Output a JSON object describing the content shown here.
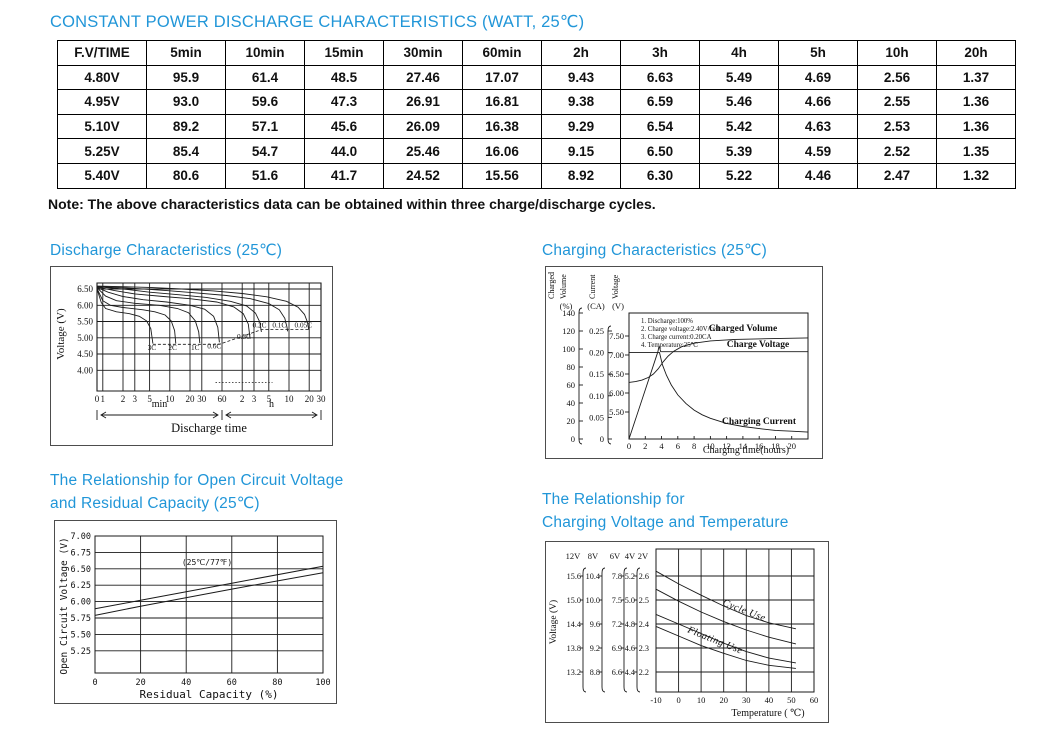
{
  "title": "CONSTANT POWER DISCHARGE CHARACTERISTICS (WATT, 25℃)",
  "note": "Note: The above characteristics data can be obtained within three charge/discharge cycles.",
  "colors": {
    "accent": "#2196d8",
    "ink": "#111111"
  },
  "table": {
    "headers": [
      "F.V/TIME",
      "5min",
      "10min",
      "15min",
      "30min",
      "60min",
      "2h",
      "3h",
      "4h",
      "5h",
      "10h",
      "20h"
    ],
    "rows": [
      {
        "label": "4.80V",
        "values": [
          "95.9",
          "61.4",
          "48.5",
          "27.46",
          "17.07",
          "9.43",
          "6.63",
          "5.49",
          "4.69",
          "2.56",
          "1.37"
        ]
      },
      {
        "label": "4.95V",
        "values": [
          "93.0",
          "59.6",
          "47.3",
          "26.91",
          "16.81",
          "9.38",
          "6.59",
          "5.46",
          "4.66",
          "2.55",
          "1.36"
        ]
      },
      {
        "label": "5.10V",
        "values": [
          "89.2",
          "57.1",
          "45.6",
          "26.09",
          "16.38",
          "9.29",
          "6.54",
          "5.42",
          "4.63",
          "2.53",
          "1.36"
        ]
      },
      {
        "label": "5.25V",
        "values": [
          "85.4",
          "54.7",
          "44.0",
          "25.46",
          "16.06",
          "9.15",
          "6.50",
          "5.39",
          "4.59",
          "2.52",
          "1.35"
        ]
      },
      {
        "label": "5.40V",
        "values": [
          "80.6",
          "51.6",
          "41.7",
          "24.52",
          "15.56",
          "8.92",
          "6.30",
          "5.22",
          "4.46",
          "2.47",
          "1.32"
        ]
      }
    ]
  },
  "chart_data": [
    {
      "id": "discharge",
      "type": "line",
      "heading": "Discharge Characteristics (25℃)",
      "ylabel": "Voltage (V)",
      "xlabel": "Discharge time",
      "x_segment_labels": [
        "min",
        "h"
      ],
      "y_ticks": [
        "6.50",
        "6.00",
        "5.50",
        "5.00",
        "4.50",
        "4.00"
      ],
      "x_ticks": [
        {
          "label": "0",
          "t": 0.82
        },
        {
          "label": "1",
          "t": 1
        },
        {
          "label": "2",
          "t": 2
        },
        {
          "label": "3",
          "t": 3
        },
        {
          "label": "5",
          "t": 5
        },
        {
          "label": "10",
          "t": 10
        },
        {
          "label": "20",
          "t": 20
        },
        {
          "label": "30",
          "t": 30
        },
        {
          "label": "60",
          "t": 60
        },
        {
          "label": "2",
          "t": 120
        },
        {
          "label": "3",
          "t": 180
        },
        {
          "label": "5",
          "t": 300
        },
        {
          "label": "10",
          "t": 600
        },
        {
          "label": "20",
          "t": 1200
        },
        {
          "label": "30",
          "t": 1800
        }
      ],
      "series": [
        {
          "name": "3C",
          "label_at": [
            5.4,
            4.62
          ],
          "points": [
            [
              0.82,
              6.5
            ],
            [
              0.95,
              6.08
            ],
            [
              1.1,
              5.9
            ],
            [
              1.6,
              5.8
            ],
            [
              2.5,
              5.74
            ],
            [
              3.5,
              5.66
            ],
            [
              4.5,
              5.52
            ],
            [
              5.2,
              5.28
            ],
            [
              5.6,
              4.82
            ]
          ]
        },
        {
          "name": "2C",
          "label_at": [
            11,
            4.62
          ],
          "points": [
            [
              0.82,
              6.52
            ],
            [
              1.0,
              6.14
            ],
            [
              1.3,
              6.0
            ],
            [
              2,
              5.93
            ],
            [
              4,
              5.86
            ],
            [
              6,
              5.8
            ],
            [
              8.5,
              5.7
            ],
            [
              10.5,
              5.52
            ],
            [
              11.8,
              5.22
            ],
            [
              12.3,
              4.82
            ]
          ]
        },
        {
          "name": "1C",
          "label_at": [
            24,
            4.62
          ],
          "points": [
            [
              0.82,
              6.54
            ],
            [
              1.1,
              6.28
            ],
            [
              1.6,
              6.14
            ],
            [
              3,
              6.06
            ],
            [
              7,
              6.0
            ],
            [
              13,
              5.9
            ],
            [
              19,
              5.77
            ],
            [
              24,
              5.52
            ],
            [
              27,
              5.18
            ],
            [
              28,
              4.84
            ]
          ]
        },
        {
          "name": "0.6C",
          "label_at": [
            46,
            4.67
          ],
          "points": [
            [
              0.82,
              6.55
            ],
            [
              1.2,
              6.4
            ],
            [
              2,
              6.27
            ],
            [
              4,
              6.17
            ],
            [
              9,
              6.1
            ],
            [
              20,
              6.0
            ],
            [
              33,
              5.88
            ],
            [
              45,
              5.66
            ],
            [
              52,
              5.32
            ],
            [
              55,
              4.86
            ]
          ]
        },
        {
          "name": "0.3C",
          "label_at": [
            128,
            4.96
          ],
          "points": [
            [
              0.82,
              6.56
            ],
            [
              1.5,
              6.45
            ],
            [
              3,
              6.35
            ],
            [
              8,
              6.27
            ],
            [
              20,
              6.2
            ],
            [
              50,
              6.1
            ],
            [
              90,
              5.95
            ],
            [
              125,
              5.74
            ],
            [
              148,
              5.42
            ],
            [
              157,
              5.0
            ]
          ]
        },
        {
          "name": "0.2C",
          "label_at": [
            218,
            5.32
          ],
          "points": [
            [
              0.82,
              6.57
            ],
            [
              2,
              6.5
            ],
            [
              5,
              6.4
            ],
            [
              14,
              6.32
            ],
            [
              35,
              6.24
            ],
            [
              80,
              6.12
            ],
            [
              140,
              5.98
            ],
            [
              190,
              5.76
            ],
            [
              220,
              5.48
            ],
            [
              232,
              5.18
            ]
          ]
        },
        {
          "name": "0.1C",
          "label_at": [
            430,
            5.32
          ],
          "points": [
            [
              0.82,
              6.58
            ],
            [
              3,
              6.52
            ],
            [
              9,
              6.45
            ],
            [
              25,
              6.38
            ],
            [
              70,
              6.3
            ],
            [
              160,
              6.2
            ],
            [
              300,
              6.05
            ],
            [
              430,
              5.86
            ],
            [
              520,
              5.6
            ],
            [
              560,
              5.32
            ],
            [
              572,
              5.2
            ]
          ]
        },
        {
          "name": "0.05C",
          "label_at": [
            980,
            5.32
          ],
          "points": [
            [
              0.82,
              6.59
            ],
            [
              5,
              6.55
            ],
            [
              15,
              6.5
            ],
            [
              45,
              6.44
            ],
            [
              120,
              6.36
            ],
            [
              280,
              6.26
            ],
            [
              550,
              6.12
            ],
            [
              820,
              5.94
            ],
            [
              1020,
              5.72
            ],
            [
              1130,
              5.48
            ],
            [
              1180,
              5.25
            ]
          ]
        }
      ],
      "cutoff_dashed": [
        [
          5.6,
          4.8
        ],
        [
          55,
          4.8
        ],
        [
          232,
          5.25
        ],
        [
          1180,
          5.25
        ]
      ],
      "bottom_dotted": [
        [
          48,
          3.62
        ],
        [
          340,
          3.62
        ]
      ]
    },
    {
      "id": "charging",
      "type": "line",
      "heading": "Charging Characteristics (25℃)",
      "xlabel": "Charging time(hours)",
      "x_ticks": [
        "0",
        "2",
        "4",
        "6",
        "8",
        "10",
        "12",
        "14",
        "16",
        "18",
        "20"
      ],
      "axes": [
        {
          "title": [
            "Charged",
            "Volume"
          ],
          "unit": "(%)",
          "ticks": [
            "140",
            "120",
            "100",
            "80",
            "60",
            "40",
            "20",
            "0"
          ]
        },
        {
          "title": [
            "Current"
          ],
          "unit": "(CA)",
          "ticks": [
            "0.25",
            "0.20",
            "0.15",
            "0.10",
            "0.05",
            "0"
          ]
        },
        {
          "title": [
            "Voltage"
          ],
          "unit": "(V)",
          "ticks": [
            "7.50",
            "7.00",
            "6.50",
            "6.00",
            "5.50"
          ]
        }
      ],
      "notes": [
        "1. Discharge:100%",
        "2. Charge voltage:2.40V/cell",
        "3. Charge current:0.20CA",
        "4. Temperature:25℃"
      ],
      "curve_labels": [
        {
          "text": "Charged Volume",
          "x": 197,
          "y": 64
        },
        {
          "text": "Charge Voltage",
          "x": 212,
          "y": 80
        },
        {
          "text": "Charging Current",
          "x": 213,
          "y": 157
        }
      ],
      "series": [
        {
          "name": "charge-voltage",
          "scale": "pct",
          "points": [
            [
              0,
              0
            ],
            [
              3.55,
              97
            ],
            [
              3.7,
              103.5
            ],
            [
              3.9,
              97
            ],
            [
              22,
              97
            ]
          ]
        },
        {
          "name": "charged-volume",
          "scale": "v",
          "points": [
            [
              0,
              6.28
            ],
            [
              0.8,
              6.3
            ],
            [
              1.6,
              6.34
            ],
            [
              2.4,
              6.41
            ],
            [
              3.0,
              6.5
            ],
            [
              3.6,
              6.64
            ],
            [
              4.2,
              6.82
            ],
            [
              4.8,
              6.97
            ],
            [
              5.5,
              7.1
            ],
            [
              6.5,
              7.22
            ],
            [
              8,
              7.31
            ],
            [
              10,
              7.37
            ],
            [
              13,
              7.41
            ],
            [
              17,
              7.43
            ],
            [
              22,
              7.45
            ]
          ]
        },
        {
          "name": "charging-current",
          "scale": "ca",
          "points": [
            [
              0,
              0.2
            ],
            [
              3.6,
              0.2
            ],
            [
              3.75,
              0.2
            ],
            [
              4.1,
              0.172
            ],
            [
              4.6,
              0.148
            ],
            [
              5.2,
              0.125
            ],
            [
              6,
              0.102
            ],
            [
              7,
              0.082
            ],
            [
              8,
              0.067
            ],
            [
              9,
              0.056
            ],
            [
              10,
              0.048
            ],
            [
              12,
              0.036
            ],
            [
              14,
              0.029
            ],
            [
              16,
              0.024
            ],
            [
              18,
              0.02
            ],
            [
              20,
              0.018
            ],
            [
              22,
              0.016
            ]
          ]
        }
      ]
    },
    {
      "id": "ocv",
      "type": "line",
      "heading_lines": [
        "The Relationship for Open Circuit Voltage",
        "and Residual Capacity (25℃)"
      ],
      "ylabel": "Open Circuit Voltage (V)",
      "xlabel": "Residual Capacity (%)",
      "annotation": "(25℃/77℉)",
      "y_ticks": [
        "7.00",
        "6.75",
        "6.50",
        "6.25",
        "6.00",
        "5.75",
        "5.50",
        "5.25"
      ],
      "x_ticks": [
        "0",
        "20",
        "40",
        "60",
        "80",
        "100"
      ],
      "series": [
        {
          "name": "upper",
          "points": [
            [
              0,
              5.89
            ],
            [
              20,
              6.02
            ],
            [
              60,
              6.28
            ],
            [
              100,
              6.54
            ]
          ]
        },
        {
          "name": "lower",
          "points": [
            [
              0,
              5.79
            ],
            [
              20,
              5.93
            ],
            [
              60,
              6.19
            ],
            [
              100,
              6.44
            ]
          ]
        }
      ]
    },
    {
      "id": "temp",
      "type": "line",
      "heading_lines": [
        "The Relationship for",
        "Charging Voltage and Temperature"
      ],
      "ylabel": "Voltage (V)",
      "xlabel": "Temperature ( ℃)",
      "col_headers": [
        "12V",
        "8V",
        "6V",
        "4V",
        "2V"
      ],
      "tick_rows": [
        [
          "15.6",
          "10.4",
          "7.8",
          "5.2",
          "2.6"
        ],
        [
          "15.0",
          "10.0",
          "7.5",
          "5.0",
          "2.5"
        ],
        [
          "14.4",
          "9.6",
          "7.2",
          "4.8",
          "2.4"
        ],
        [
          "13.8",
          "9.2",
          "6.9",
          "4.6",
          "2.3"
        ],
        [
          "13.2",
          "8.8",
          "6.6",
          "4.4",
          "2.2"
        ]
      ],
      "x_ticks": [
        "-10",
        "0",
        "10",
        "20",
        "30",
        "40",
        "50",
        "60"
      ],
      "band_labels": [
        {
          "text": "Cycle Use",
          "x": 176,
          "y": 63,
          "rot": 21
        },
        {
          "text": "Floating Use",
          "x": 141,
          "y": 90,
          "rot": 22
        }
      ],
      "series": [
        {
          "name": "cycle-upper",
          "points": [
            [
              -10,
              2.62
            ],
            [
              0,
              2.567
            ],
            [
              10,
              2.52
            ],
            [
              20,
              2.475
            ],
            [
              30,
              2.435
            ],
            [
              40,
              2.405
            ],
            [
              52,
              2.38
            ]
          ]
        },
        {
          "name": "cycle-lower",
          "points": [
            [
              -10,
              2.545
            ],
            [
              0,
              2.495
            ],
            [
              10,
              2.45
            ],
            [
              20,
              2.41
            ],
            [
              30,
              2.375
            ],
            [
              40,
              2.345
            ],
            [
              52,
              2.317
            ]
          ]
        },
        {
          "name": "float-upper",
          "points": [
            [
              -10,
              2.44
            ],
            [
              0,
              2.4
            ],
            [
              10,
              2.36
            ],
            [
              20,
              2.32
            ],
            [
              30,
              2.285
            ],
            [
              40,
              2.258
            ],
            [
              52,
              2.238
            ]
          ]
        },
        {
          "name": "float-lower",
          "points": [
            [
              -10,
              2.39
            ],
            [
              0,
              2.35
            ],
            [
              10,
              2.31
            ],
            [
              20,
              2.278
            ],
            [
              30,
              2.248
            ],
            [
              40,
              2.228
            ],
            [
              52,
              2.215
            ]
          ]
        }
      ]
    }
  ]
}
